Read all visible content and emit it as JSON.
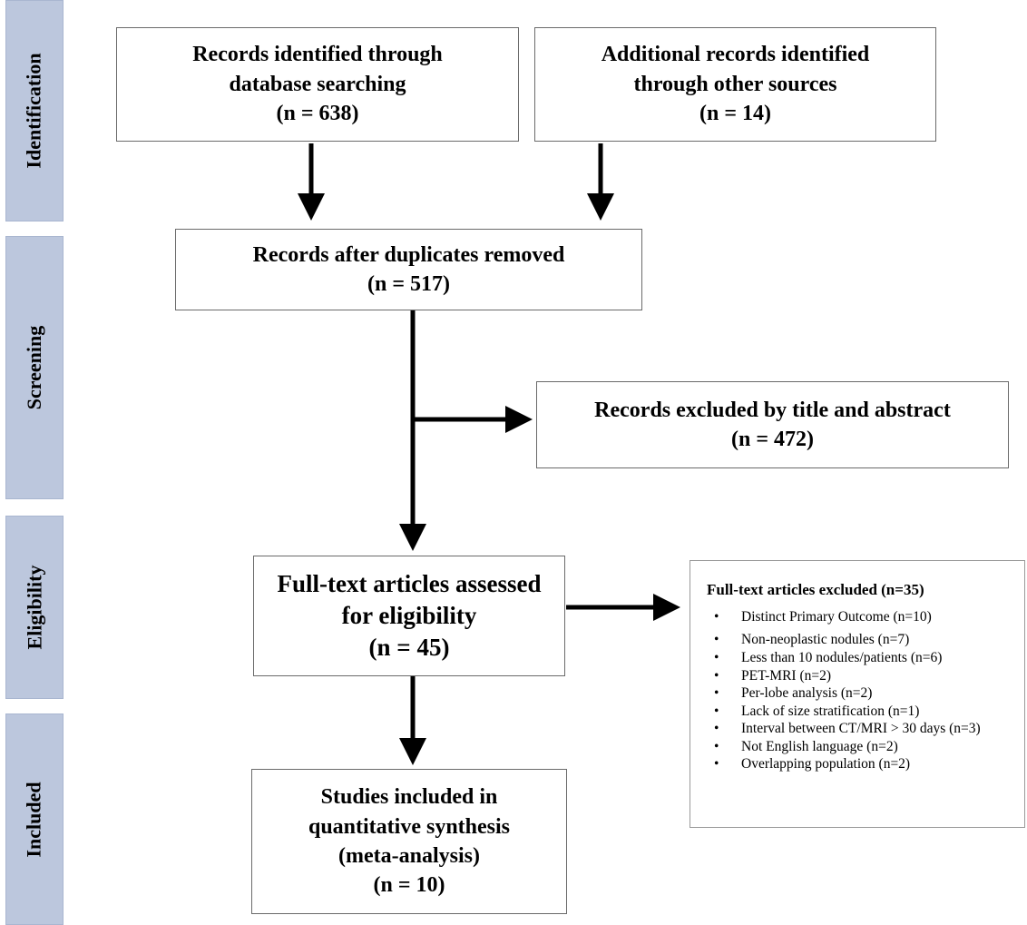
{
  "phases": {
    "identification": "Identification",
    "screening": "Screening",
    "eligibility": "Eligibility",
    "included": "Included"
  },
  "boxes": {
    "database": {
      "line1": "Records identified through",
      "line2": "database searching",
      "count": "(n = 638)"
    },
    "other_sources": {
      "line1": "Additional records identified",
      "line2": "through other sources",
      "count": "(n = 14)"
    },
    "duplicates_removed": {
      "line1": "Records after duplicates removed",
      "count": "(n = 517)"
    },
    "excluded_title_abstract": {
      "line1": "Records excluded by title and abstract",
      "count": "(n = 472)"
    },
    "full_text_assessed": {
      "line1": "Full-text articles assessed",
      "line2": "for eligibility",
      "count": "(n = 45)"
    },
    "included_studies": {
      "line1": "Studies included in",
      "line2": "quantitative synthesis",
      "line3": "(meta-analysis)",
      "count": "(n = 10)"
    }
  },
  "full_text_excluded": {
    "title": "Full-text articles excluded (n=35)",
    "reasons": [
      "Distinct Primary Outcome (n=10)",
      "Non-neoplastic nodules (n=7)",
      "Less than 10 nodules/patients (n=6)",
      "PET-MRI (n=2)",
      "Per-lobe analysis (n=2)",
      "Lack of size stratification (n=1)",
      "Interval between CT/MRI > 30 days (n=3)",
      "Not English language (n=2)",
      "Overlapping population (n=2)"
    ]
  }
}
